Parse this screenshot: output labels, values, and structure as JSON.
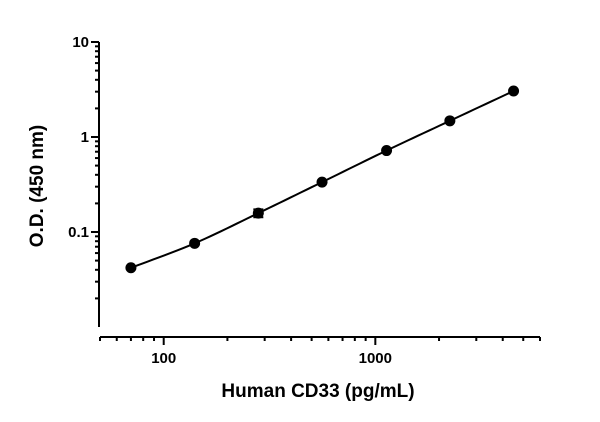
{
  "chart_data": {
    "type": "scatter",
    "xlabel": "Human CD33 (pg/mL)",
    "ylabel": "O.D. (450 nm)",
    "xscale": "log",
    "yscale": "log",
    "xlim": [
      50,
      6000
    ],
    "ylim": [
      0.01,
      10
    ],
    "xticks": [
      100,
      1000
    ],
    "xtick_labels": [
      "100",
      "1000"
    ],
    "yticks": [
      0.1,
      1,
      10
    ],
    "ytick_labels": [
      "0.1",
      "1",
      "10"
    ],
    "grid": false,
    "legend": "none",
    "fit_line": true,
    "marker_color": "#000000",
    "series": [
      {
        "x": [
          70,
          140,
          280,
          560,
          1130,
          2250,
          4500
        ],
        "y": [
          0.042,
          0.076,
          0.158,
          0.335,
          0.72,
          1.48,
          3.05
        ],
        "y_err": [
          0.001,
          0.002,
          0.015,
          0.005,
          0.01,
          0.02,
          0.03
        ]
      }
    ]
  }
}
